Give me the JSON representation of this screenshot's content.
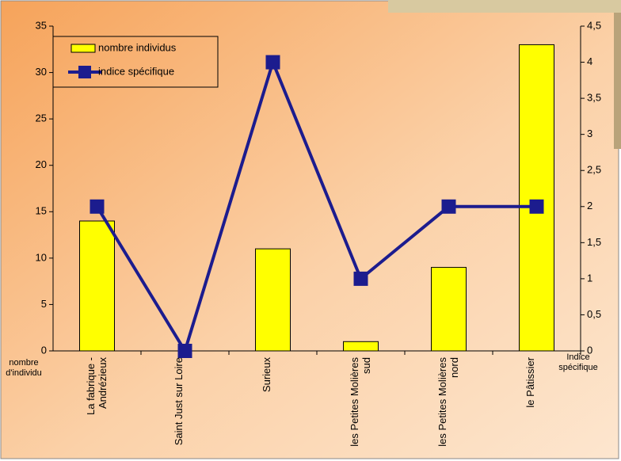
{
  "chart_data": {
    "type": "bar-line",
    "categories": [
      "La fabrique - Andrézieux",
      "Saint Just sur Loire",
      "Surieux",
      "les Petites Molières sud",
      "les Petites Molières nord",
      "le Pâtissier"
    ],
    "series": [
      {
        "name": "nombre individus",
        "type": "bar",
        "color": "#ffff00",
        "values": [
          14,
          0,
          11,
          1,
          9,
          33
        ]
      },
      {
        "name": "indice spécifique",
        "type": "line",
        "color": "#1c1c8e",
        "axis": "y2",
        "values": [
          2,
          0,
          4,
          1,
          2,
          2
        ]
      }
    ],
    "ylabel": "nombre d'individu",
    "y2label": "Indice spécifique",
    "ylim": [
      0,
      35
    ],
    "yticks": [
      0,
      5,
      10,
      15,
      20,
      25,
      30,
      35
    ],
    "y2lim": [
      0,
      4.5
    ],
    "y2ticks": [
      0,
      {
        "value": 0.5,
        "label": "0,5"
      },
      1,
      {
        "value": 1.5,
        "label": "1,5"
      },
      2,
      {
        "value": 2.5,
        "label": "2,5"
      },
      3,
      {
        "value": 3.5,
        "label": "3,5"
      },
      4,
      {
        "value": 4.5,
        "label": "4,5"
      }
    ],
    "legend": "top-left"
  }
}
